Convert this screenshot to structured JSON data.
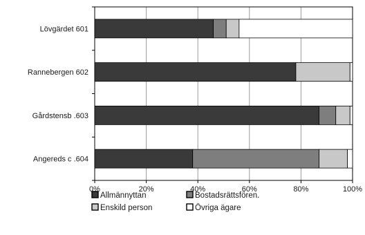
{
  "chart_data": {
    "type": "bar",
    "orientation": "horizontal",
    "stacked": true,
    "title": "",
    "xlabel": "",
    "ylabel": "",
    "xlim": [
      0,
      100
    ],
    "categories": [
      "Lövgärdet 601",
      "Rannebergen 602",
      "Gårdstensb .603",
      "Angereds c .604"
    ],
    "x_ticks": [
      "0%",
      "20%",
      "40%",
      "60%",
      "80%",
      "100%"
    ],
    "series": [
      {
        "name": "Allmännyttan",
        "values": [
          46,
          78,
          87,
          38
        ],
        "color": "#3a3a3a"
      },
      {
        "name": "Bostadsrättsfören.",
        "values": [
          5,
          0,
          6.5,
          49
        ],
        "color": "#7e7e7e"
      },
      {
        "name": "Enskild person",
        "values": [
          5,
          21,
          5.5,
          11
        ],
        "color": "#c8c8c8"
      },
      {
        "name": "Övriga ägare",
        "values": [
          44,
          1,
          1,
          2
        ],
        "color": "#ffffff"
      }
    ],
    "grid": "vertical",
    "legend_position": "bottom-left"
  }
}
